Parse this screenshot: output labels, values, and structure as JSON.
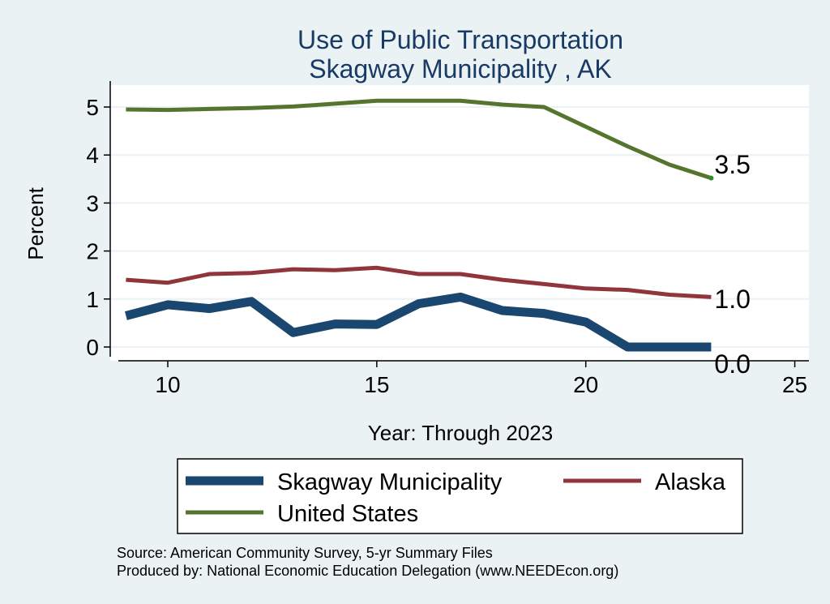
{
  "chart_data": {
    "type": "line",
    "title": "Use of Public Transportation",
    "subtitle": "Skagway Municipality , AK",
    "xlabel": "Year: Through 2023",
    "ylabel": "Percent",
    "xlim": [
      9,
      25
    ],
    "ylim": [
      0,
      5
    ],
    "x_ticks": [
      "10",
      "15",
      "20",
      "25"
    ],
    "y_ticks": [
      "0",
      "1",
      "2",
      "3",
      "4",
      "5"
    ],
    "grid": true,
    "legend_position": "bottom",
    "x": [
      9,
      10,
      11,
      12,
      13,
      14,
      15,
      16,
      17,
      18,
      19,
      20,
      21,
      22,
      23
    ],
    "series": [
      {
        "name": "Skagway Municipality",
        "color": "#1a476f",
        "values": [
          0.65,
          0.88,
          0.8,
          0.95,
          0.3,
          0.48,
          0.47,
          0.9,
          1.04,
          0.76,
          0.7,
          0.52,
          0.0,
          0.0,
          0.0
        ],
        "end_label": "0.0"
      },
      {
        "name": "Alaska",
        "color": "#90353b",
        "values": [
          1.4,
          1.34,
          1.52,
          1.54,
          1.62,
          1.6,
          1.65,
          1.52,
          1.52,
          1.4,
          1.31,
          1.22,
          1.19,
          1.09,
          1.04
        ],
        "end_label": "1.0"
      },
      {
        "name": "United States",
        "color": "#55752f",
        "values": [
          4.95,
          4.94,
          4.96,
          4.98,
          5.01,
          5.07,
          5.13,
          5.13,
          5.13,
          5.05,
          5.0,
          4.59,
          4.18,
          3.8,
          3.52
        ],
        "end_label": "3.5"
      }
    ]
  },
  "footer": {
    "source": "Source: American Community Survey, 5-yr Summary Files",
    "produced": "Produced by: National Economic Education Delegation (www.NEEDEcon.org)"
  }
}
